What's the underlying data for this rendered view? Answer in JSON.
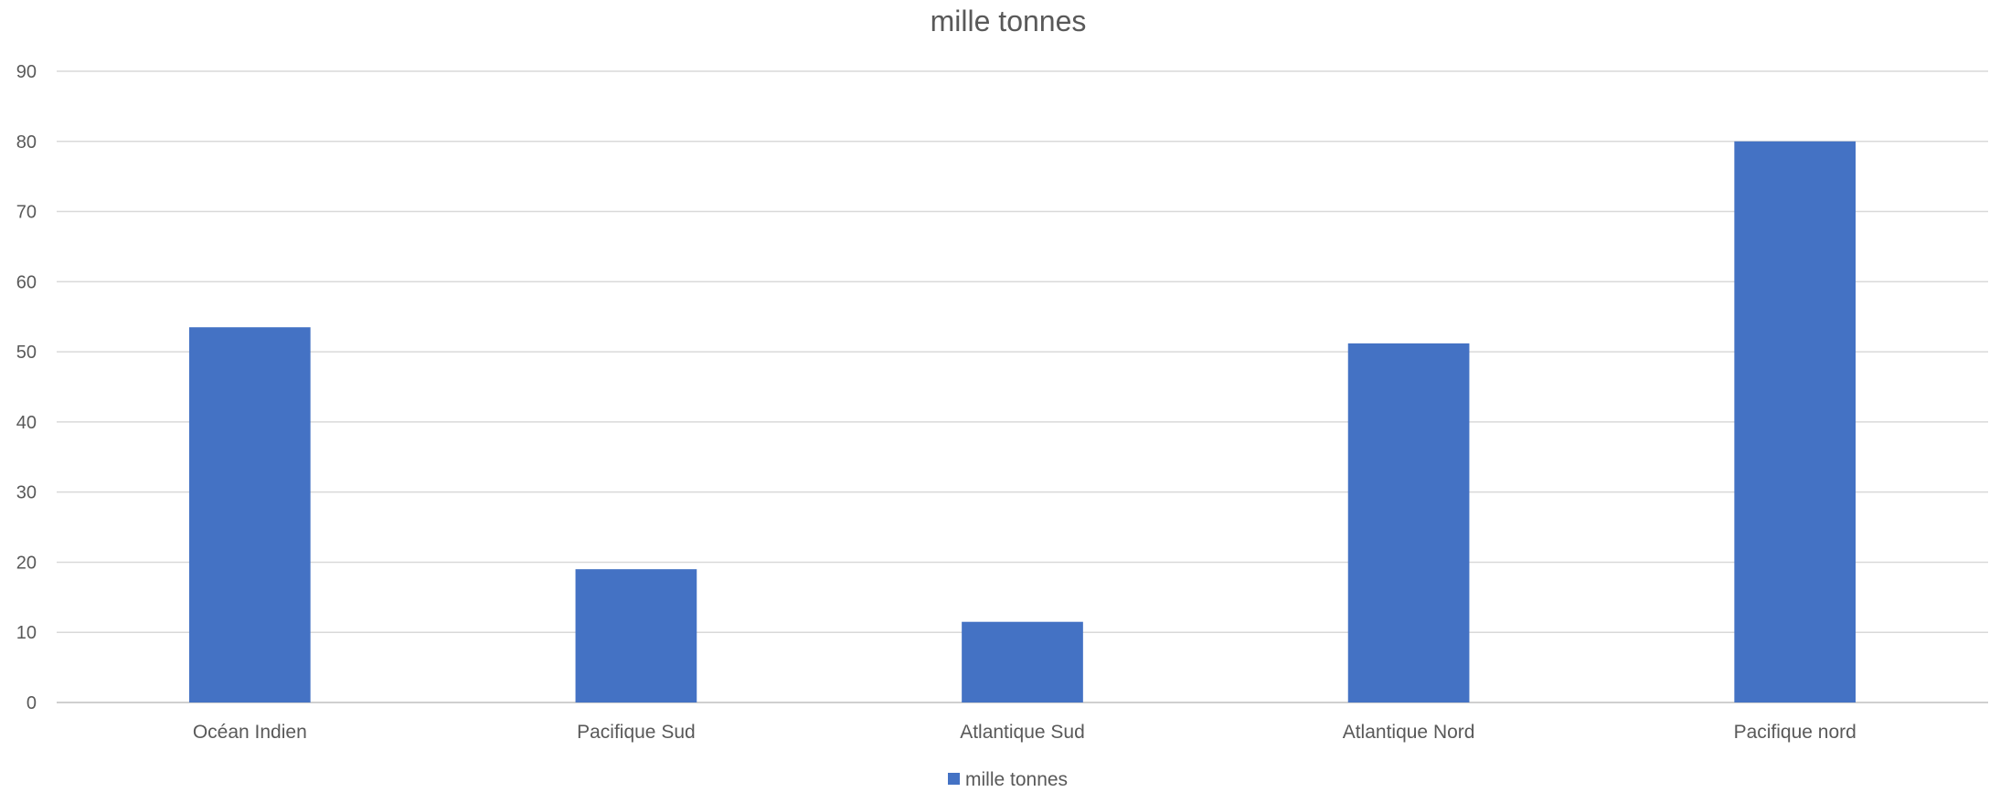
{
  "chart_data": {
    "type": "bar",
    "title": "mille tonnes",
    "categories": [
      "Océan Indien",
      "Pacifique Sud",
      "Atlantique Sud",
      "Atlantique Nord",
      "Pacifique nord"
    ],
    "series": [
      {
        "name": "mille tonnes",
        "values": [
          53.5,
          19,
          11.5,
          51.2,
          80
        ],
        "color": "#4472c4"
      }
    ],
    "ylim": [
      0,
      90
    ],
    "yticks": [
      0,
      10,
      20,
      30,
      40,
      50,
      60,
      70,
      80,
      90
    ],
    "grid": true,
    "legend": "bottom"
  }
}
